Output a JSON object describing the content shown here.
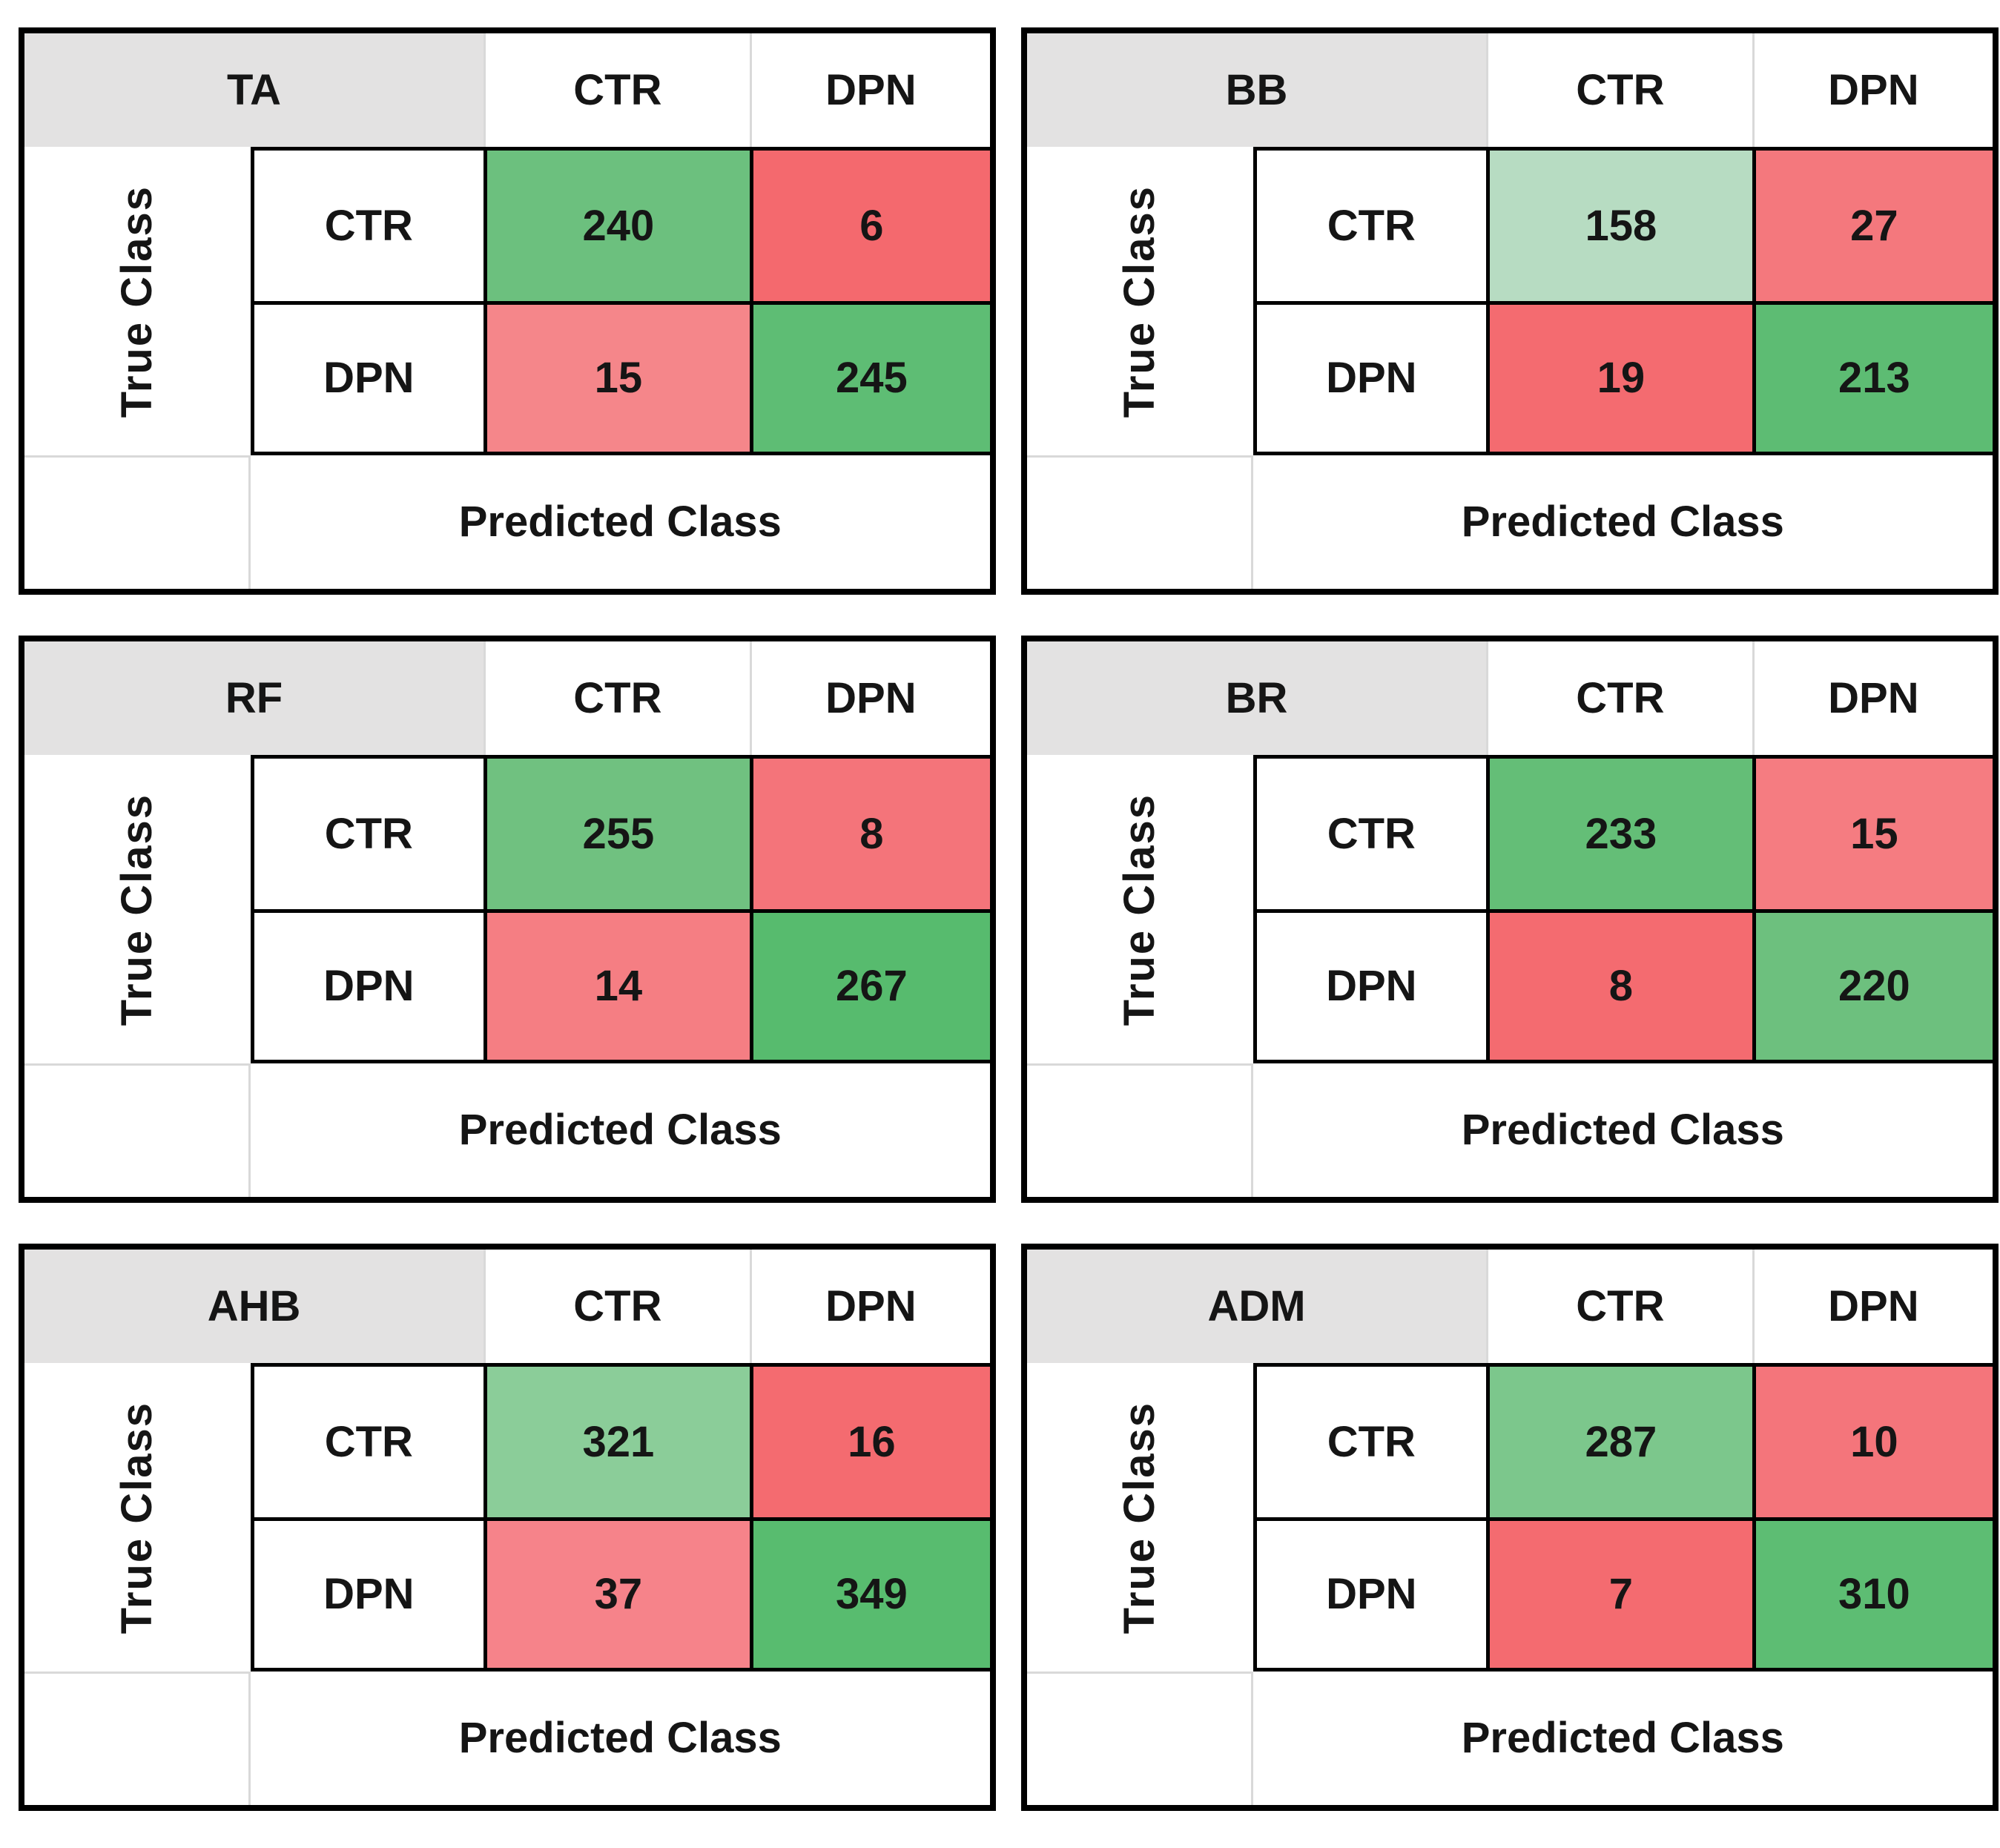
{
  "figure": {
    "description_labels": {
      "true_class": "True Class",
      "predicted_class": "Predicted Class"
    },
    "colors": {
      "title_bg": "#e3e2e2",
      "grid_line": "#d9d9d9",
      "border": "#000000",
      "text": "#151515"
    }
  },
  "chart_data": [
    {
      "type": "heatmap",
      "title": "TA",
      "xlabel": "Predicted Class",
      "ylabel": "True Class",
      "col_headers": [
        "CTR",
        "DPN"
      ],
      "row_labels": [
        "CTR",
        "DPN"
      ],
      "values": [
        [
          240,
          6
        ],
        [
          15,
          245
        ]
      ],
      "cell_colors": [
        [
          "#6cc07e",
          "#f4696e"
        ],
        [
          "#f5868a",
          "#5ebd74"
        ]
      ]
    },
    {
      "type": "heatmap",
      "title": "BB",
      "xlabel": "Predicted Class",
      "ylabel": "True Class",
      "col_headers": [
        "CTR",
        "DPN"
      ],
      "row_labels": [
        "CTR",
        "DPN"
      ],
      "values": [
        [
          158,
          27
        ],
        [
          19,
          213
        ]
      ],
      "cell_colors": [
        [
          "#b7dcc2",
          "#f4787d"
        ],
        [
          "#f46b70",
          "#5dbc73"
        ]
      ]
    },
    {
      "type": "heatmap",
      "title": "RF",
      "xlabel": "Predicted Class",
      "ylabel": "True Class",
      "col_headers": [
        "CTR",
        "DPN"
      ],
      "row_labels": [
        "CTR",
        "DPN"
      ],
      "values": [
        [
          255,
          8
        ],
        [
          14,
          267
        ]
      ],
      "cell_colors": [
        [
          "#70c180",
          "#f4747a"
        ],
        [
          "#f57e83",
          "#57bb6e"
        ]
      ]
    },
    {
      "type": "heatmap",
      "title": "BR",
      "xlabel": "Predicted Class",
      "ylabel": "True Class",
      "col_headers": [
        "CTR",
        "DPN"
      ],
      "row_labels": [
        "CTR",
        "DPN"
      ],
      "values": [
        [
          233,
          15
        ],
        [
          8,
          220
        ]
      ],
      "cell_colors": [
        [
          "#64be77",
          "#f57c81"
        ],
        [
          "#f46b70",
          "#6dc07e"
        ]
      ]
    },
    {
      "type": "heatmap",
      "title": "AHB",
      "xlabel": "Predicted Class",
      "ylabel": "True Class",
      "col_headers": [
        "CTR",
        "DPN"
      ],
      "row_labels": [
        "CTR",
        "DPN"
      ],
      "values": [
        [
          321,
          16
        ],
        [
          37,
          349
        ]
      ],
      "cell_colors": [
        [
          "#8bcd99",
          "#f46b70"
        ],
        [
          "#f6838a",
          "#58bc6f"
        ]
      ]
    },
    {
      "type": "heatmap",
      "title": "ADM",
      "xlabel": "Predicted Class",
      "ylabel": "True Class",
      "col_headers": [
        "CTR",
        "DPN"
      ],
      "row_labels": [
        "CTR",
        "DPN"
      ],
      "values": [
        [
          287,
          10
        ],
        [
          7,
          310
        ]
      ],
      "cell_colors": [
        [
          "#7cc78c",
          "#f4757b"
        ],
        [
          "#f46b70",
          "#5dbd73"
        ]
      ]
    }
  ]
}
